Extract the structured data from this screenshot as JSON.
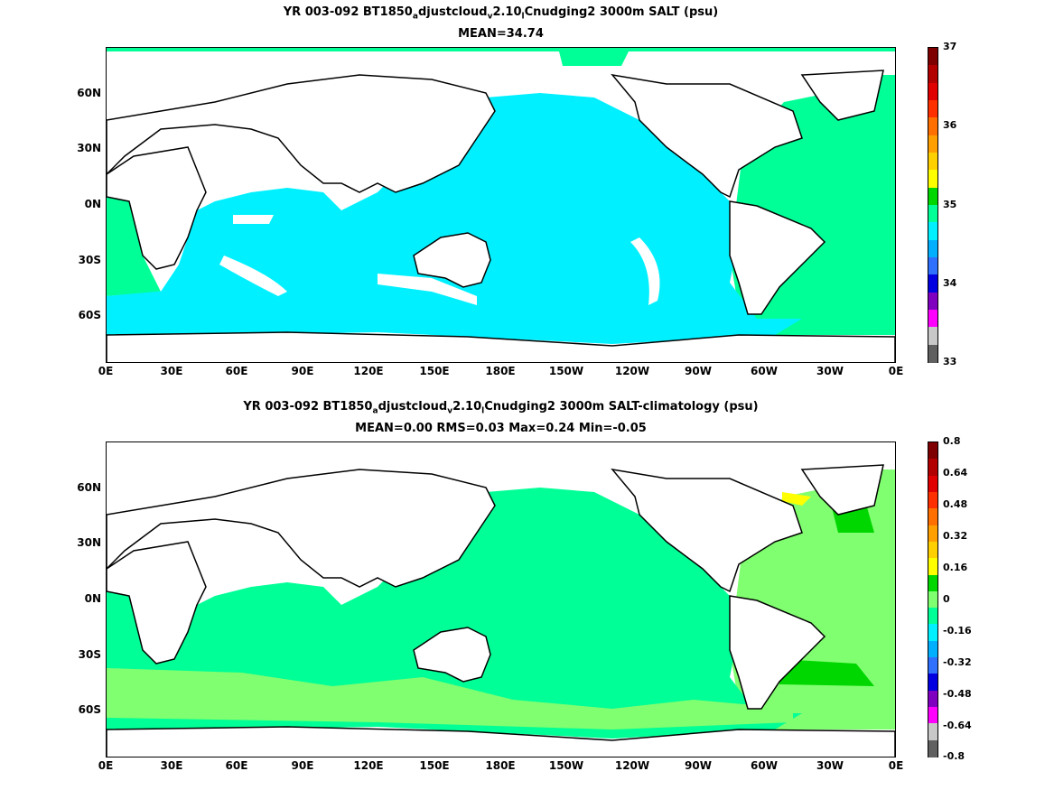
{
  "panels": [
    {
      "title_parts": [
        "YR 003-092 BT1850",
        "a",
        "djustcloud",
        "v",
        "2.10",
        "l",
        "Cnudging2 3000m SALT (psu)"
      ],
      "subtitle": "MEAN=34.74",
      "lat_labels": [
        "60N",
        "30N",
        "0N",
        "30S",
        "60S"
      ],
      "lon_labels": [
        "0E",
        "30E",
        "60E",
        "90E",
        "120E",
        "150E",
        "180E",
        "150W",
        "120W",
        "90W",
        "60W",
        "30W",
        "0E"
      ],
      "colorbar": {
        "ticks": [
          "37",
          "36",
          "35",
          "34",
          "33"
        ],
        "colors": [
          "#7f0000",
          "#b20000",
          "#e00000",
          "#ff3000",
          "#ff7000",
          "#ffa000",
          "#ffd000",
          "#ffff00",
          "#00d700",
          "#00ff96",
          "#00f0ff",
          "#00b0ff",
          "#3070ff",
          "#0000e0",
          "#8000c0",
          "#ff00ff",
          "#c8c8c8",
          "#606060"
        ]
      },
      "fill_main": "#00f0ff",
      "fill_atlantic": "#00ff96"
    },
    {
      "title_parts": [
        "YR 003-092 BT1850",
        "a",
        "djustcloud",
        "v",
        "2.10",
        "l",
        "Cnudging2 3000m SALT-climatology (psu)"
      ],
      "subtitle": "MEAN=0.00   RMS=0.03   Max=0.24   Min=-0.05",
      "lat_labels": [
        "60N",
        "30N",
        "0N",
        "30S",
        "60S"
      ],
      "lon_labels": [
        "0E",
        "30E",
        "60E",
        "90E",
        "120E",
        "150E",
        "180E",
        "150W",
        "120W",
        "90W",
        "60W",
        "30W",
        "0E"
      ],
      "colorbar": {
        "ticks": [
          "0.8",
          "0.64",
          "0.48",
          "0.32",
          "0.16",
          "0",
          "-0.16",
          "-0.32",
          "-0.48",
          "-0.64",
          "-0.8"
        ],
        "colors": [
          "#7f0000",
          "#b20000",
          "#e00000",
          "#ff3000",
          "#ff7000",
          "#ffa000",
          "#ffd000",
          "#ffff00",
          "#00d700",
          "#80ff70",
          "#00ff96",
          "#00f0ff",
          "#00b0ff",
          "#3070ff",
          "#0000e0",
          "#8000c0",
          "#ff00ff",
          "#c8c8c8",
          "#606060"
        ]
      },
      "fill_main": "#00ff96",
      "fill_atlantic": "#80ff70"
    }
  ]
}
